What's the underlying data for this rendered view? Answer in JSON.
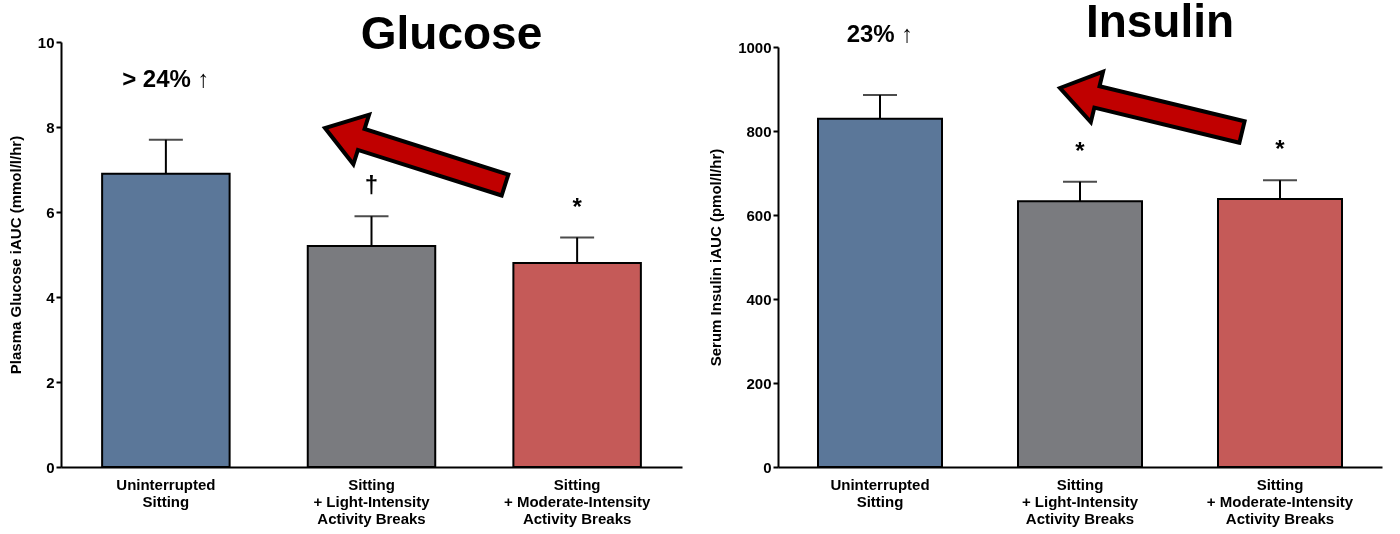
{
  "chart_data": [
    {
      "type": "bar",
      "title": "Glucose",
      "ylabel": "Plasma Glucose iAUC (mmol/l/hr)",
      "categories": [
        "Uninterrupted\nSitting",
        "Sitting\n+ Light-Intensity\nActivity Breaks",
        "Sitting\n+ Moderate-Intensity\nActivity Breaks"
      ],
      "values": [
        6.9,
        5.2,
        4.8
      ],
      "colors": [
        "#5b7799",
        "#7a7b7f",
        "#c55a58"
      ],
      "errors": [
        [
          6.9,
          7.7
        ],
        [
          5.2,
          5.9
        ],
        [
          4.8,
          5.4
        ]
      ],
      "ylim": [
        0,
        10
      ],
      "yticks": [
        0,
        2,
        4,
        6,
        8,
        10
      ],
      "annotations": [
        "> 24% ↑",
        "†",
        "*"
      ]
    },
    {
      "type": "bar",
      "title": "Insulin",
      "ylabel": "Serum Insulin iAUC (pmol/l/hr)",
      "categories": [
        "Uninterrupted\nSitting",
        "Sitting\n+ Light-Intensity\nActivity Breaks",
        "Sitting\n+ Moderate-Intensity\nActivity Breaks"
      ],
      "values": [
        829,
        633,
        638
      ],
      "colors": [
        "#5b7799",
        "#7a7b7f",
        "#c55a58"
      ],
      "errors": [
        [
          829,
          886
        ],
        [
          633,
          679
        ],
        [
          638,
          683
        ]
      ],
      "ylim": [
        0,
        1000
      ],
      "yticks": [
        0,
        200,
        400,
        600,
        800,
        1000
      ],
      "annotations": [
        "23% ↑",
        "*",
        "*"
      ]
    }
  ]
}
